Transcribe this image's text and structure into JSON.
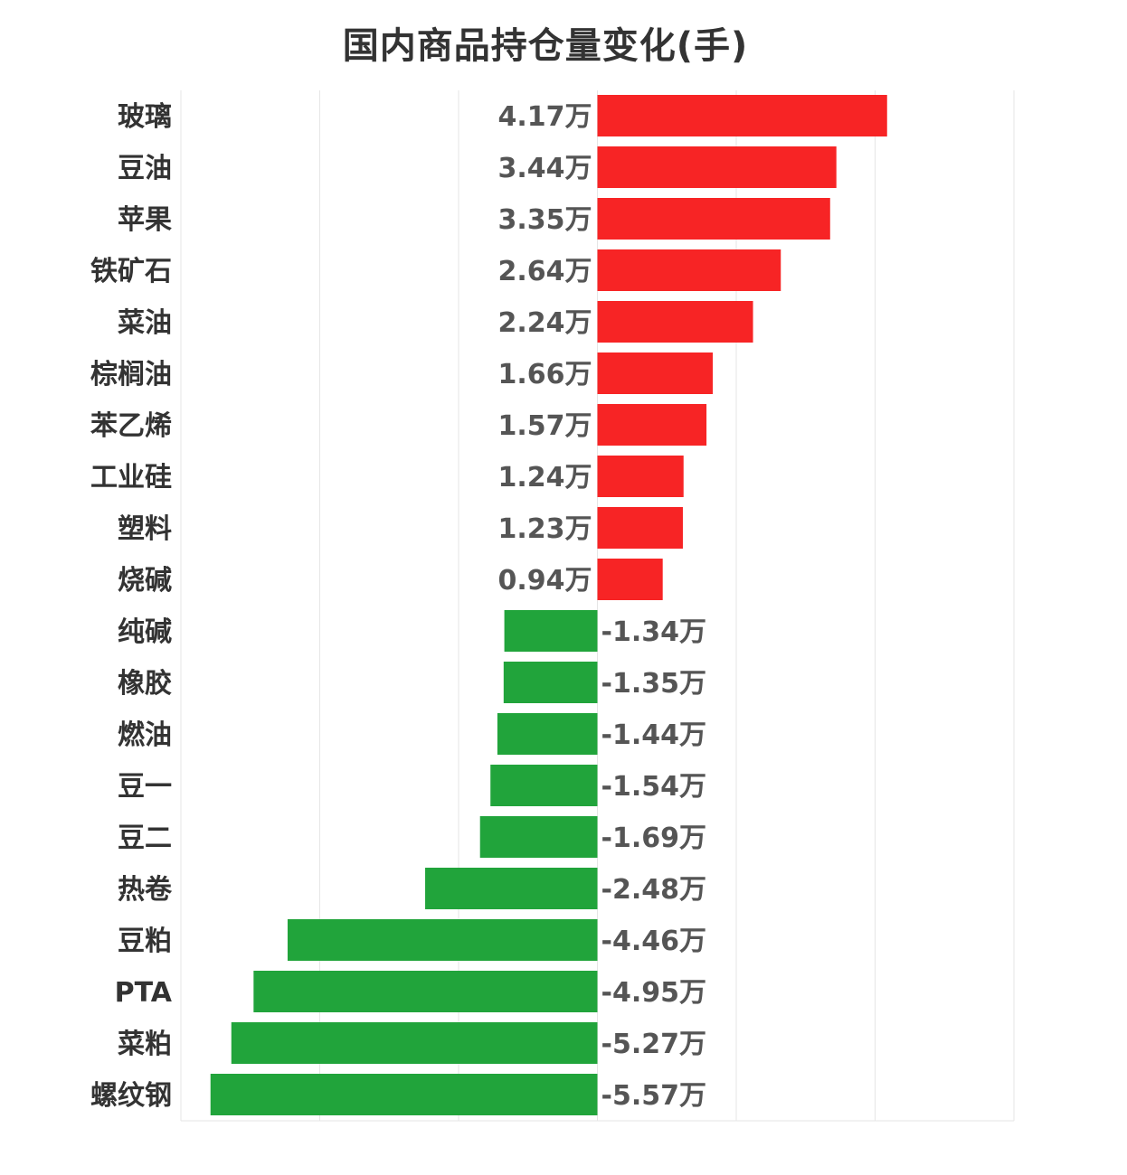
{
  "chart_data": {
    "type": "bar",
    "orientation": "horizontal",
    "title": "国内商品持仓量变化(手)",
    "xlabel": "",
    "ylabel": "",
    "unit": "万",
    "xlim": [
      -6,
      6
    ],
    "grid": true,
    "categories": [
      "玻璃",
      "豆油",
      "苹果",
      "铁矿石",
      "菜油",
      "棕榈油",
      "苯乙烯",
      "工业硅",
      "塑料",
      "烧碱",
      "纯碱",
      "橡胶",
      "燃油",
      "豆一",
      "豆二",
      "热卷",
      "豆粕",
      "PTA",
      "菜粕",
      "螺纹钢"
    ],
    "values": [
      4.17,
      3.44,
      3.35,
      2.64,
      2.24,
      1.66,
      1.57,
      1.24,
      1.23,
      0.94,
      -1.34,
      -1.35,
      -1.44,
      -1.54,
      -1.69,
      -2.48,
      -4.46,
      -4.95,
      -5.27,
      -5.57
    ],
    "value_labels": [
      "4.17万",
      "3.44万",
      "3.35万",
      "2.64万",
      "2.24万",
      "1.66万",
      "1.57万",
      "1.24万",
      "1.23万",
      "0.94万",
      "-1.34万",
      "-1.35万",
      "-1.44万",
      "-1.54万",
      "-1.69万",
      "-2.48万",
      "-4.46万",
      "-4.95万",
      "-5.27万",
      "-5.57万"
    ],
    "colors": {
      "positive": "#f72425",
      "negative": "#21a43b"
    }
  }
}
